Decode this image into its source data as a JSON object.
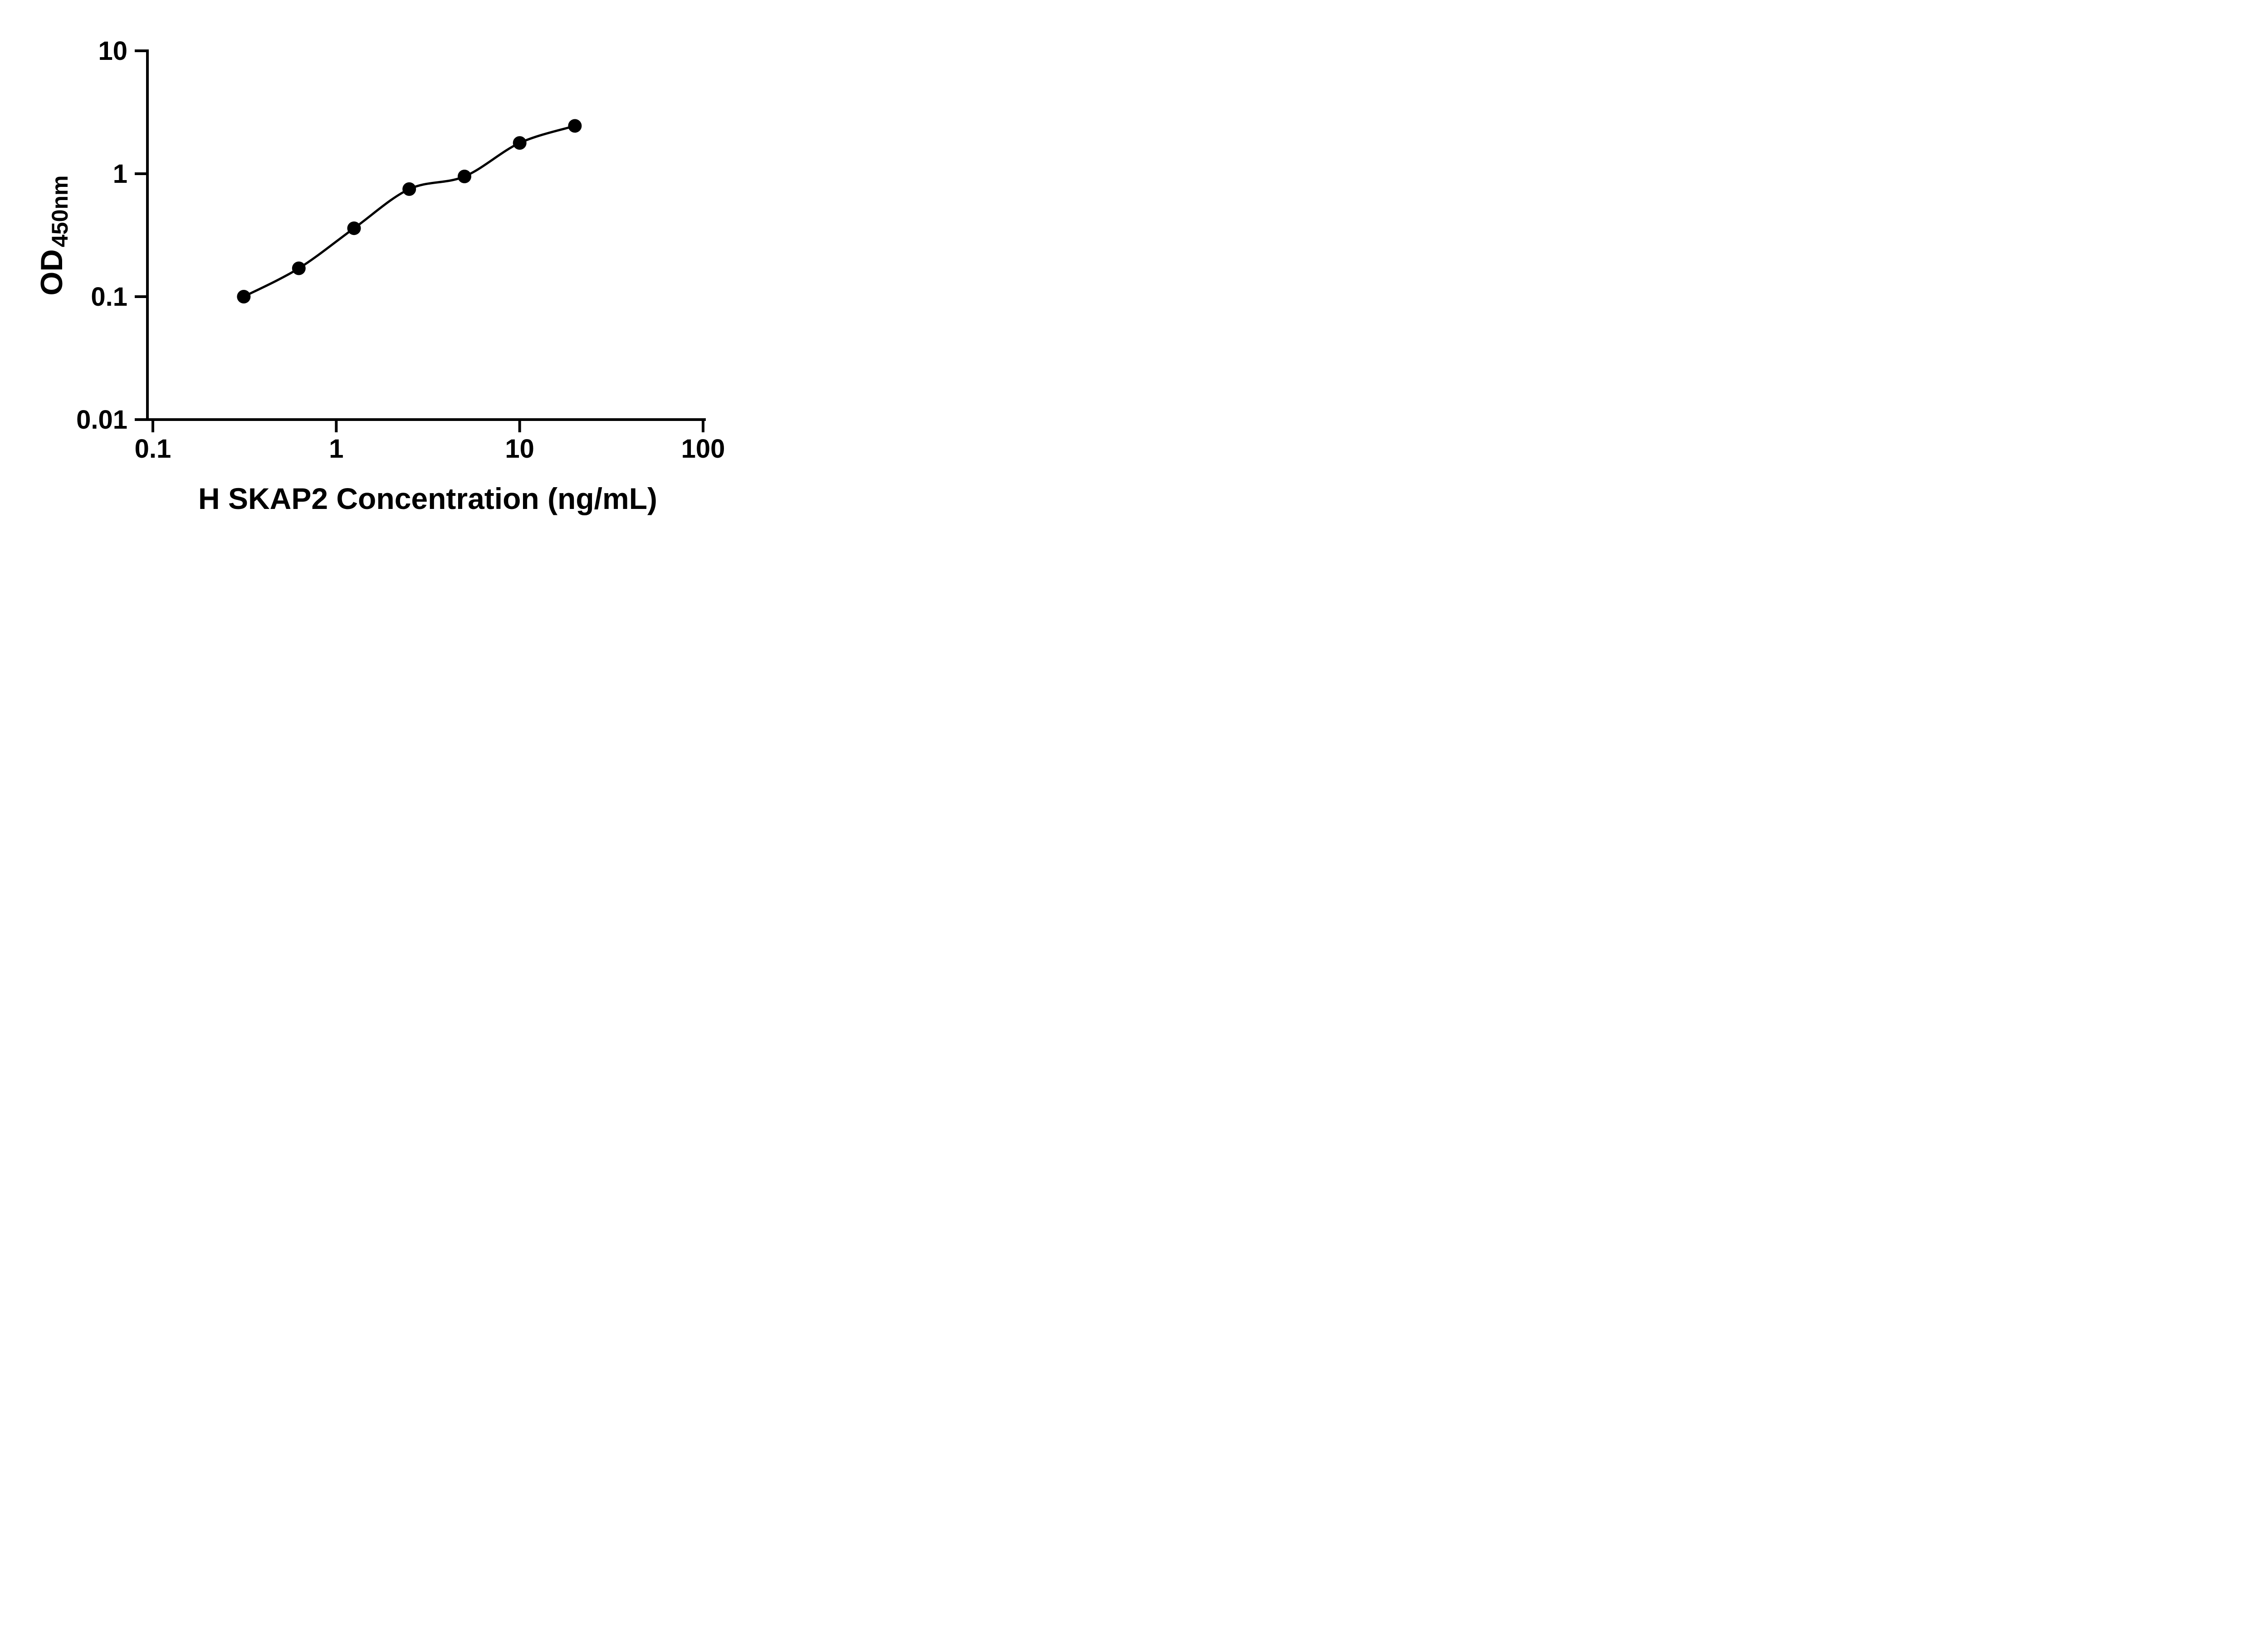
{
  "page": {
    "background_color": "#ffffff",
    "foreground_color": "#000000"
  },
  "chart_data": {
    "type": "scatter",
    "title": "",
    "xlabel": "H SKAP2 Concentration (ng/mL)",
    "ylabel": "OD450nm",
    "ylabel_parts": {
      "main": "OD",
      "sub": "450nm"
    },
    "xscale": "log",
    "yscale": "log",
    "xlim": [
      0.1,
      100
    ],
    "ylim": [
      0.01,
      10
    ],
    "x_tick_labels": [
      "0.1",
      "1",
      "10",
      "100"
    ],
    "y_tick_labels": [
      "10",
      "1",
      "0.1",
      "0.01"
    ],
    "grid": false,
    "legend": false,
    "x": [
      0.313,
      0.625,
      1.25,
      2.5,
      5,
      10,
      20
    ],
    "y": [
      0.1,
      0.17,
      0.36,
      0.75,
      0.95,
      1.78,
      2.45
    ],
    "marker": "filled-circle",
    "marker_color": "#000000",
    "line": "smooth-curve-through-points",
    "line_color": "#000000",
    "axis_color": "#000000"
  }
}
